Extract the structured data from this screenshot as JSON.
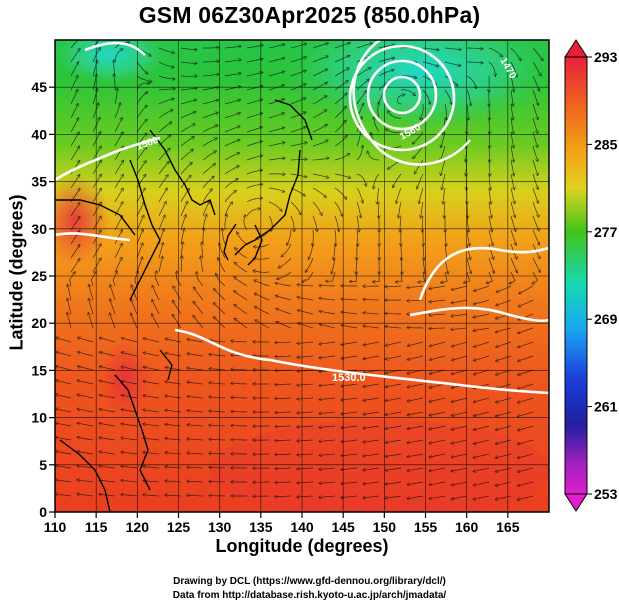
{
  "title": "GSM 06Z30Apr2025 (850.0hPa)",
  "xlabel": "Longitude (degrees)",
  "ylabel": "Latitude  (degrees)",
  "x_ticks": [
    "110",
    "115",
    "120",
    "125",
    "130",
    "135",
    "140",
    "145",
    "150",
    "155",
    "160",
    "165"
  ],
  "y_ticks": [
    "0",
    "5",
    "10",
    "15",
    "20",
    "25",
    "30",
    "35",
    "40",
    "45"
  ],
  "colorbar": {
    "ticks": [
      "293",
      "285",
      "277",
      "269",
      "261",
      "253"
    ],
    "colors": [
      "#e8203c",
      "#f06a1c",
      "#f2a41a",
      "#e0d21c",
      "#40c41c",
      "#18d8b4",
      "#1aa8f0",
      "#1c3cd8",
      "#2020a0",
      "#a020c0",
      "#e020c8"
    ]
  },
  "contour_labels": [
    "1530.0",
    "1560",
    "1500",
    "1470"
  ],
  "credits": [
    "Drawing by DCL (https://www.gfd-dennou.org/library/dcl/)",
    "Data from http://database.rish.kyoto-u.ac.jp/arch/jmadata/"
  ]
}
